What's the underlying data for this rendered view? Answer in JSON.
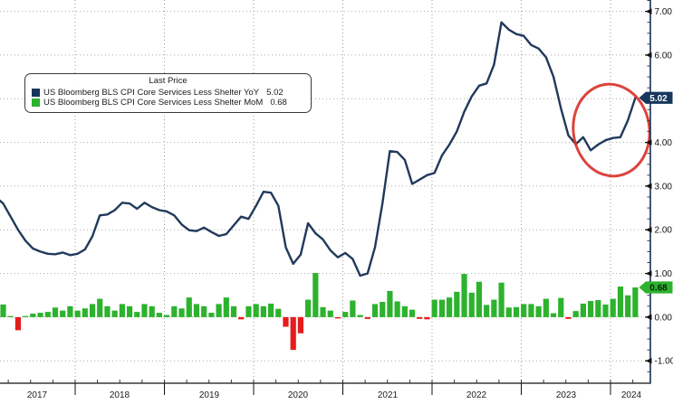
{
  "legend": {
    "title": "Last Price",
    "entries": [
      {
        "label": "US Bloomberg BLS CPI Core Services Less Shelter YoY",
        "value": "5.02",
        "color": "#16365c"
      },
      {
        "label": "US Bloomberg BLS CPI Core Services Less Shelter MoM",
        "value": "0.68",
        "color": "#2db22d"
      }
    ]
  },
  "colors": {
    "line": "#21395c",
    "bar_positive": "#2db22d",
    "bar_negative": "#e51c1c",
    "annotation_circle": "#d9342b",
    "grid": "#aaaaaa",
    "axis_line": "#17304f",
    "axis_text": "#111111",
    "badge_yoy_bg": "#16365c",
    "badge_yoy_fg": "#ffffff",
    "badge_mom_bg": "#2db22d",
    "badge_mom_fg": "#07230a"
  },
  "axes": {
    "y_right": {
      "tick_labels": [
        "7.00",
        "6.00",
        "4.00",
        "3.00",
        "2.00",
        "1.00",
        "0.00",
        "-1.00"
      ],
      "tick_values": [
        7,
        6,
        4,
        3,
        2,
        1,
        0,
        -1
      ],
      "badges": [
        {
          "text": "5.02",
          "value": 5.02,
          "bg": "#16365c",
          "fg": "#ffffff"
        },
        {
          "text": "0.68",
          "value": 0.68,
          "bg": "#2db22d",
          "fg": "#07230a"
        }
      ]
    },
    "x": {
      "labels": [
        "2017",
        "2018",
        "2019",
        "2020",
        "2021",
        "2022",
        "2023",
        "2024"
      ]
    }
  },
  "chart_data": {
    "type": "mixed",
    "x_monthly_start": "2017-01",
    "x_monthly_end": "2024-03",
    "x_tick_labels": [
      "2017",
      "2018",
      "2019",
      "2020",
      "2021",
      "2022",
      "2023",
      "2024"
    ],
    "y_axis": {
      "side": "right",
      "range": [
        -1.6,
        7.3
      ],
      "grid": "dotted",
      "tick_values": [
        7,
        6,
        4,
        3,
        2,
        1,
        0,
        -1
      ]
    },
    "legend_position": "top-left",
    "series": [
      {
        "name": "US Bloomberg BLS CPI Core Services Less Shelter YoY",
        "type": "line",
        "last_price": 5.02,
        "values": [
          2.75,
          2.6,
          2.3,
          2.0,
          1.75,
          1.57,
          1.5,
          1.45,
          1.44,
          1.48,
          1.42,
          1.45,
          1.55,
          1.85,
          2.33,
          2.35,
          2.45,
          2.62,
          2.6,
          2.48,
          2.62,
          2.52,
          2.45,
          2.42,
          2.33,
          2.12,
          1.99,
          1.97,
          2.05,
          1.95,
          1.86,
          1.9,
          2.1,
          2.3,
          2.25,
          2.55,
          2.87,
          2.85,
          2.55,
          1.6,
          1.22,
          1.43,
          2.15,
          1.92,
          1.78,
          1.53,
          1.37,
          1.47,
          1.33,
          0.95,
          1.0,
          1.6,
          2.6,
          3.8,
          3.78,
          3.6,
          3.05,
          3.15,
          3.25,
          3.3,
          3.7,
          3.95,
          4.25,
          4.7,
          5.05,
          5.3,
          5.35,
          5.78,
          6.75,
          6.58,
          6.48,
          6.44,
          6.23,
          6.15,
          5.95,
          5.5,
          4.78,
          4.16,
          3.96,
          4.12,
          3.82,
          3.95,
          4.05,
          4.1,
          4.12,
          4.5,
          5.02
        ]
      },
      {
        "name": "US Bloomberg BLS CPI Core Services Less Shelter MoM",
        "type": "bar",
        "last_price": 0.68,
        "values": [
          0.15,
          0.29,
          0.02,
          -0.3,
          0.02,
          0.08,
          0.1,
          0.12,
          0.22,
          0.15,
          0.25,
          0.15,
          0.2,
          0.3,
          0.42,
          0.25,
          0.15,
          0.3,
          0.25,
          0.12,
          0.3,
          0.25,
          0.1,
          0.05,
          0.25,
          0.2,
          0.45,
          0.3,
          0.25,
          0.1,
          0.3,
          0.45,
          0.25,
          -0.05,
          0.25,
          0.3,
          0.25,
          0.31,
          0.19,
          -0.22,
          -0.75,
          -0.37,
          0.4,
          1.01,
          0.23,
          0.15,
          -0.03,
          0.12,
          0.38,
          0.05,
          -0.04,
          0.3,
          0.35,
          0.6,
          0.36,
          0.25,
          0.17,
          -0.04,
          -0.05,
          0.4,
          0.4,
          0.45,
          0.58,
          0.99,
          0.56,
          0.81,
          0.28,
          0.4,
          0.79,
          0.22,
          0.23,
          0.3,
          0.3,
          0.25,
          0.42,
          0.09,
          0.44,
          -0.04,
          0.14,
          0.31,
          0.37,
          0.39,
          0.29,
          0.42,
          0.7,
          0.5,
          0.68
        ]
      }
    ],
    "annotation": {
      "type": "ellipse",
      "note": "red circle highlighting late-2023 to early-2024 re-acceleration toward 5.02"
    }
  }
}
